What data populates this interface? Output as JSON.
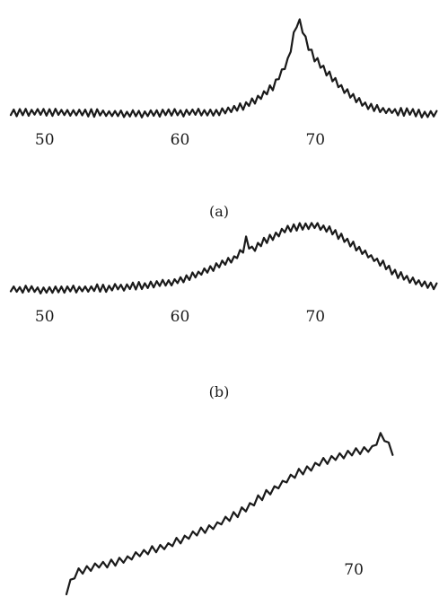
{
  "chart_data": [
    {
      "type": "line",
      "panel_label": "(a)",
      "xlim": [
        47.5,
        79.0
      ],
      "ylim": [
        0,
        1
      ],
      "x_ticks": [
        50,
        60,
        70
      ],
      "x_tick_labels": [
        "50",
        "60",
        "70"
      ],
      "series": [
        {
          "x": [
            47.5,
            50,
            52.5,
            55,
            57.5,
            60,
            62.5,
            64,
            65,
            66,
            67,
            68,
            68.7,
            69,
            69.4,
            70,
            71,
            72,
            73,
            74,
            75,
            76,
            77,
            78,
            79
          ],
          "y": [
            0.09,
            0.09,
            0.09,
            0.08,
            0.08,
            0.09,
            0.09,
            0.12,
            0.16,
            0.23,
            0.33,
            0.55,
            0.9,
            0.82,
            0.68,
            0.55,
            0.42,
            0.3,
            0.2,
            0.14,
            0.11,
            0.1,
            0.09,
            0.08,
            0.08
          ]
        }
      ]
    },
    {
      "type": "line",
      "panel_label": "(b)",
      "xlim": [
        47.5,
        79.0
      ],
      "ylim": [
        0,
        1
      ],
      "x_ticks": [
        50,
        60,
        70
      ],
      "x_tick_labels": [
        "50",
        "60",
        "70"
      ],
      "series": [
        {
          "x": [
            47.5,
            50,
            52.5,
            55,
            57.5,
            60,
            61,
            62,
            63,
            64,
            64.6,
            64.9,
            65.2,
            66,
            67,
            68,
            69,
            70,
            71,
            72,
            73,
            74,
            75,
            76,
            77,
            78,
            79
          ],
          "y": [
            0.14,
            0.13,
            0.14,
            0.15,
            0.17,
            0.21,
            0.25,
            0.3,
            0.35,
            0.4,
            0.46,
            0.58,
            0.47,
            0.53,
            0.6,
            0.66,
            0.68,
            0.68,
            0.65,
            0.58,
            0.5,
            0.42,
            0.35,
            0.27,
            0.22,
            0.18,
            0.16
          ]
        }
      ]
    },
    {
      "type": "line",
      "panel_label": "",
      "xlim": [
        51.5,
        74.5
      ],
      "ylim": [
        0,
        1
      ],
      "x_ticks": [
        70
      ],
      "x_tick_labels": [
        "70"
      ],
      "series": [
        {
          "x": [
            54.5,
            55,
            56,
            57,
            58,
            59,
            60,
            61,
            62,
            63,
            64,
            65,
            66,
            67,
            68,
            69,
            70,
            71,
            71.5,
            72,
            72.3
          ],
          "y": [
            0.03,
            0.14,
            0.18,
            0.2,
            0.23,
            0.27,
            0.3,
            0.35,
            0.39,
            0.44,
            0.5,
            0.58,
            0.65,
            0.72,
            0.77,
            0.81,
            0.84,
            0.86,
            0.95,
            0.85,
            0.84
          ]
        }
      ]
    }
  ]
}
